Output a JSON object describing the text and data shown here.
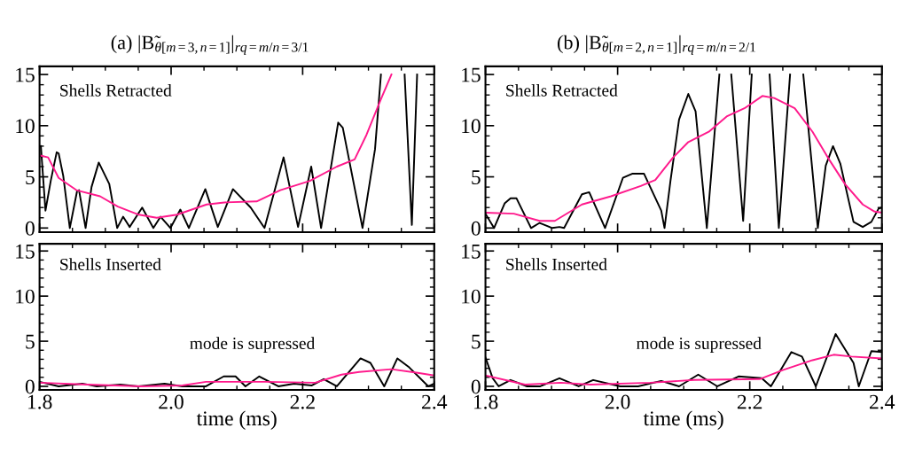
{
  "chart_data": [
    {
      "type": "line",
      "title": "(a) |B̃$_{θ[m=3,n=1]}$|$_{rq=m/n=3/1}$",
      "annotations": [
        "Shells Retracted"
      ],
      "xlim": [
        1.8,
        2.4
      ],
      "xticks": [
        1.8,
        2.0,
        2.2,
        2.4
      ],
      "ylim": [
        -0.4,
        15.8
      ],
      "yticks": [
        0,
        5,
        10,
        15
      ],
      "tick_labels": "y",
      "grid": false,
      "legend": false,
      "series": [
        {
          "color": "#000000",
          "x": [
            1.802,
            1.809,
            1.817,
            1.826,
            1.829,
            1.836,
            1.846,
            1.857,
            1.86,
            1.87,
            1.879,
            1.89,
            1.906,
            1.918,
            1.927,
            1.937,
            1.956,
            1.973,
            1.984,
            1.999,
            2.014,
            2.027,
            2.052,
            2.071,
            2.094,
            2.121,
            2.142,
            2.171,
            2.193,
            2.213,
            2.228,
            2.254,
            2.261,
            2.291,
            2.31,
            2.319,
            2.337,
            2.355,
            2.366,
            2.374
          ],
          "values": [
            8.0,
            1.7,
            4.6,
            7.4,
            7.3,
            5.1,
            0,
            3.6,
            3.7,
            0,
            4.0,
            6.4,
            4.3,
            0,
            1.1,
            0.1,
            2.0,
            0,
            1.1,
            0,
            1.8,
            0,
            3.8,
            0.1,
            3.8,
            2.0,
            0,
            6.9,
            0.1,
            6.0,
            0,
            10.3,
            9.8,
            0,
            7.7,
            15,
            null,
            15,
            0.3,
            15
          ]
        },
        {
          "color": "#ff1a8c",
          "x": [
            1.8,
            1.813,
            1.829,
            1.856,
            1.892,
            1.919,
            1.951,
            1.978,
            2.009,
            2.054,
            2.081,
            2.13,
            2.166,
            2.211,
            2.252,
            2.279,
            2.297,
            2.319,
            2.335
          ],
          "values": [
            7.1,
            6.9,
            4.9,
            3.7,
            3.1,
            2.1,
            1.3,
            1.0,
            1.3,
            2.3,
            2.5,
            2.6,
            3.7,
            4.6,
            6.0,
            6.7,
            9.1,
            12.6,
            15
          ]
        }
      ]
    },
    {
      "type": "line",
      "xlabel": "time (ms)",
      "annotations": [
        "Shells Inserted",
        "mode is supressed"
      ],
      "xlim": [
        1.8,
        2.4
      ],
      "xticks": [
        1.8,
        {
          "value": 2.0,
          "label": "2.0"
        },
        2.2,
        2.4
      ],
      "ylim": [
        -0.4,
        15.8
      ],
      "yticks": [
        0,
        5,
        10,
        15
      ],
      "grid": false,
      "legend": false,
      "series": [
        {
          "color": "#000000",
          "x": [
            1.8,
            1.829,
            1.865,
            1.887,
            1.923,
            1.95,
            1.99,
            2.017,
            2.053,
            2.08,
            2.098,
            2.113,
            2.134,
            2.163,
            2.187,
            2.214,
            2.232,
            2.252,
            2.288,
            2.303,
            2.324,
            2.344,
            2.362,
            2.391,
            2.4
          ],
          "values": [
            0.5,
            0,
            0.3,
            0,
            0.2,
            0,
            0.3,
            0,
            0,
            1.1,
            1.1,
            0,
            1.1,
            0,
            0.3,
            0.1,
            0.8,
            0,
            3.1,
            2.6,
            0,
            3.1,
            2.1,
            0,
            0.3
          ]
        },
        {
          "color": "#ff1a8c",
          "x": [
            1.8,
            1.874,
            1.955,
            2.017,
            2.053,
            2.143,
            2.219,
            2.259,
            2.286,
            2.335,
            2.375,
            2.4
          ],
          "values": [
            0.4,
            0.2,
            0,
            0.1,
            0.5,
            0.5,
            0.4,
            1.3,
            1.6,
            1.9,
            1.5,
            1.2
          ]
        }
      ]
    },
    {
      "type": "line",
      "title": "(b) |B̃$_{θ[m=2,n=1]}$|$_{rq=m/n=2/1}$",
      "annotations": [
        "Shells Retracted"
      ],
      "xlim": [
        1.8,
        2.4
      ],
      "xticks": [
        1.8,
        2.0,
        2.2,
        2.4
      ],
      "ylim": [
        -0.4,
        15.8
      ],
      "yticks": [
        0,
        5,
        10,
        15
      ],
      "tick_labels": "y",
      "grid": false,
      "legend": false,
      "series": [
        {
          "color": "#000000",
          "x": [
            1.8,
            1.813,
            1.829,
            1.838,
            1.847,
            1.869,
            1.882,
            1.901,
            1.912,
            1.919,
            1.946,
            1.957,
            1.981,
            2.008,
            2.022,
            2.04,
            2.066,
            2.071,
            2.08,
            2.093,
            2.107,
            2.118,
            2.135,
            2.154,
            2.163,
            2.172,
            2.19,
            2.203,
            2.216,
            2.23,
            2.244,
            2.261,
            2.27,
            2.281,
            2.303,
            2.315,
            2.326,
            2.337,
            2.357,
            2.371,
            2.384,
            2.395,
            2.4
          ],
          "values": [
            1.4,
            0,
            2.4,
            2.9,
            2.9,
            0,
            0.5,
            0,
            0.1,
            0,
            3.3,
            3.5,
            0,
            4.9,
            5.3,
            5.3,
            1.7,
            0,
            4.6,
            10.6,
            13.1,
            11.4,
            0,
            15,
            null,
            15,
            0.7,
            15,
            null,
            15,
            0,
            15,
            null,
            15,
            0,
            6.1,
            8.0,
            6.3,
            0.6,
            0.1,
            0.6,
            1.9,
            2.0
          ]
        },
        {
          "color": "#ff1a8c",
          "x": [
            1.8,
            1.843,
            1.882,
            1.905,
            1.946,
            1.99,
            2.035,
            2.057,
            2.084,
            2.107,
            2.138,
            2.165,
            2.192,
            2.219,
            2.237,
            2.268,
            2.295,
            2.318,
            2.344,
            2.371,
            2.389,
            2.4
          ],
          "values": [
            1.5,
            1.4,
            0.7,
            0.7,
            2.3,
            3.1,
            4.1,
            4.7,
            6.9,
            8.4,
            9.4,
            10.9,
            11.7,
            12.9,
            12.7,
            11.7,
            9.4,
            6.9,
            4.3,
            2.3,
            1.6,
            1.5
          ]
        }
      ]
    },
    {
      "type": "line",
      "xlabel": "time (ms)",
      "annotations": [
        "Shells Inserted",
        "mode is supressed"
      ],
      "xlim": [
        1.8,
        2.4
      ],
      "xticks": [
        1.8,
        {
          "value": 2.0,
          "label": "2.0"
        },
        2.2,
        2.4
      ],
      "ylim": [
        -0.4,
        15.8
      ],
      "yticks": [
        0,
        5,
        10,
        15
      ],
      "grid": false,
      "legend": false,
      "series": [
        {
          "color": "#000000",
          "x": [
            1.8,
            1.811,
            1.82,
            1.838,
            1.863,
            1.883,
            1.912,
            1.941,
            1.963,
            2.004,
            2.031,
            2.066,
            2.093,
            2.122,
            2.151,
            2.183,
            2.218,
            2.232,
            2.263,
            2.279,
            2.3,
            2.33,
            2.357,
            2.365,
            2.384,
            2.4
          ],
          "values": [
            3.2,
            0.9,
            0,
            0.7,
            0,
            0,
            0.9,
            0,
            0.7,
            0,
            0,
            0.6,
            0,
            1.3,
            0,
            1.1,
            0.9,
            0,
            3.8,
            3.3,
            0,
            5.8,
            2.6,
            0,
            3.9,
            3.8
          ]
        },
        {
          "color": "#ff1a8c",
          "x": [
            1.8,
            1.86,
            1.914,
            1.959,
            2.049,
            2.116,
            2.215,
            2.25,
            2.295,
            2.327,
            2.354,
            2.4
          ],
          "values": [
            1.2,
            0.2,
            0.4,
            0.2,
            0.4,
            0.7,
            0.8,
            1.8,
            2.9,
            3.5,
            3.3,
            3.1
          ]
        }
      ]
    }
  ]
}
